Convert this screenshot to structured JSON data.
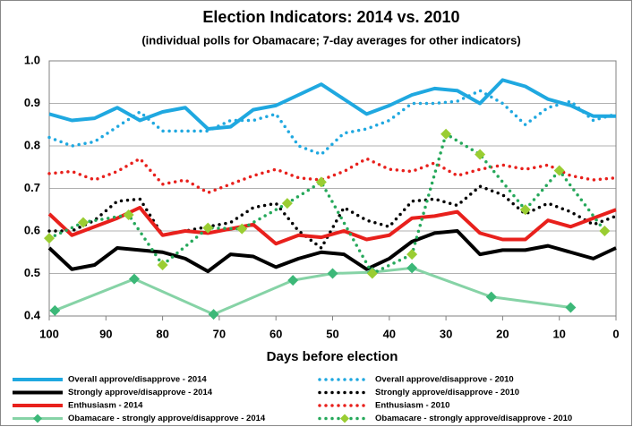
{
  "chart_data": {
    "type": "line",
    "title": "Election Indicators: 2014 vs. 2010",
    "subtitle": "(individual polls for Obamacare; 7-day averages for other indicators)",
    "x_label": "Days before election",
    "xlim": [
      100,
      0
    ],
    "xticks": [
      100,
      90,
      80,
      70,
      60,
      50,
      40,
      30,
      20,
      10,
      0
    ],
    "ylim": [
      0.4,
      1
    ],
    "yticks": [
      0.4,
      0.5,
      0.6,
      0.7,
      0.8,
      0.9,
      {
        "value": 1,
        "label": "1.0"
      }
    ],
    "grid": true,
    "legend": "bottom",
    "x": [
      100,
      96,
      92,
      88,
      84,
      80,
      76,
      72,
      68,
      64,
      60,
      56,
      52,
      48,
      44,
      40,
      36,
      32,
      28,
      24,
      20,
      16,
      12,
      8,
      4,
      0
    ],
    "series": [
      {
        "name": "Overall approve/disapprove - 2014",
        "color": "#1fa8e0",
        "style": "solid",
        "values": [
          0.875,
          0.86,
          0.865,
          0.89,
          0.86,
          0.88,
          0.89,
          0.84,
          0.845,
          0.885,
          0.895,
          0.92,
          0.945,
          0.91,
          0.875,
          0.895,
          0.92,
          0.935,
          0.93,
          0.9,
          0.955,
          0.94,
          0.91,
          0.895,
          0.87,
          0.87
        ]
      },
      {
        "name": "Overall approve/disapprove - 2010",
        "color": "#1fa8e0",
        "style": "dotted",
        "values": [
          0.82,
          0.8,
          0.81,
          0.845,
          0.88,
          0.835,
          0.835,
          0.835,
          0.86,
          0.86,
          0.875,
          0.8,
          0.78,
          0.83,
          0.84,
          0.86,
          0.9,
          0.9,
          0.905,
          0.93,
          0.9,
          0.85,
          0.89,
          0.905,
          0.86,
          0.875
        ]
      },
      {
        "name": "Strongly approve/disapprove - 2014",
        "color": "#000000",
        "style": "solid",
        "values": [
          0.56,
          0.51,
          0.52,
          0.56,
          0.555,
          0.55,
          0.535,
          0.505,
          0.545,
          0.54,
          0.515,
          0.535,
          0.55,
          0.545,
          0.51,
          0.535,
          0.575,
          0.595,
          0.6,
          0.545,
          0.555,
          0.555,
          0.565,
          0.55,
          0.535,
          0.56
        ]
      },
      {
        "name": "Strongly approve/disapprove - 2010",
        "color": "#000000",
        "style": "dotted",
        "values": [
          0.6,
          0.6,
          0.625,
          0.67,
          0.675,
          0.59,
          0.6,
          0.61,
          0.62,
          0.655,
          0.665,
          0.6,
          0.56,
          0.655,
          0.625,
          0.61,
          0.67,
          0.675,
          0.66,
          0.705,
          0.685,
          0.64,
          0.665,
          0.645,
          0.615,
          0.635
        ]
      },
      {
        "name": "Enthusiasm - 2014",
        "color": "#e8201c",
        "style": "solid",
        "values": [
          0.64,
          0.59,
          0.61,
          0.63,
          0.655,
          0.59,
          0.6,
          0.595,
          0.605,
          0.615,
          0.57,
          0.59,
          0.585,
          0.6,
          0.58,
          0.59,
          0.63,
          0.635,
          0.645,
          0.595,
          0.58,
          0.58,
          0.625,
          0.61,
          0.63,
          0.65
        ]
      },
      {
        "name": "Enthusiasm - 2010",
        "color": "#e8201c",
        "style": "dotted",
        "values": [
          0.735,
          0.74,
          0.72,
          0.74,
          0.77,
          0.71,
          0.72,
          0.69,
          0.71,
          0.73,
          0.745,
          0.725,
          0.72,
          0.74,
          0.77,
          0.745,
          0.74,
          0.76,
          0.73,
          0.745,
          0.755,
          0.745,
          0.755,
          0.73,
          0.72,
          0.725
        ]
      },
      {
        "name": "Obamacare - strongly approve/disapprove - 2014",
        "color": "#86d3a6",
        "marker_color": "#3cb878",
        "style": "solid",
        "x": [
          99,
          85,
          71,
          57,
          50,
          43,
          36,
          22,
          8
        ],
        "values": [
          0.413,
          0.487,
          0.404,
          0.484,
          0.5,
          0.503,
          0.513,
          0.445,
          0.42
        ]
      },
      {
        "name": "Obamacare - strongly approve/disapprove - 2010",
        "color": "#25a85a",
        "marker_color": "#9acd32",
        "style": "dotted",
        "x": [
          100,
          94,
          86,
          80,
          72,
          66,
          58,
          52,
          43,
          36,
          30,
          24,
          16,
          10,
          2
        ],
        "values": [
          0.583,
          0.62,
          0.638,
          0.52,
          0.607,
          0.605,
          0.665,
          0.715,
          0.5,
          0.545,
          0.828,
          0.78,
          0.65,
          0.742,
          0.6
        ]
      }
    ]
  }
}
